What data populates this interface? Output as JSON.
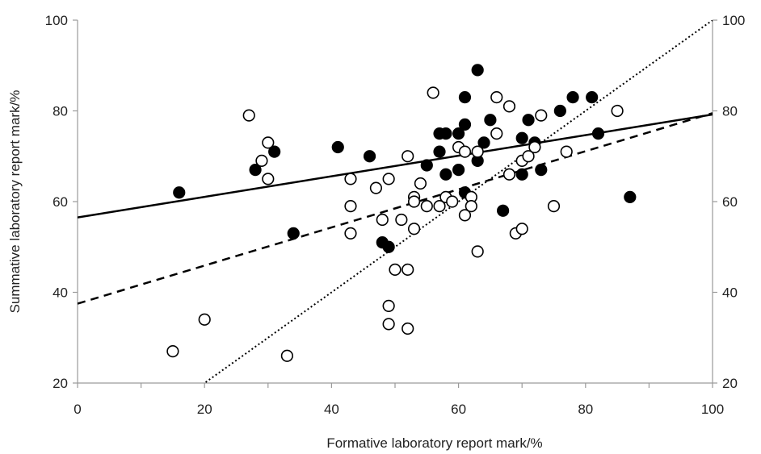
{
  "chart_data": {
    "type": "scatter",
    "title": "",
    "xlabel": "Formative laboratory report mark/%",
    "ylabel": "Summative laboratory report mark/%",
    "xlim": [
      0,
      100
    ],
    "ylim": [
      20,
      100
    ],
    "x_ticks": [
      0,
      20,
      40,
      60,
      80,
      100
    ],
    "y_ticks": [
      20,
      40,
      60,
      80,
      100
    ],
    "x_tick_labels": [
      "0",
      "20",
      "40",
      "60",
      "80",
      "100"
    ],
    "y_tick_labels": [
      "20",
      "40",
      "60",
      "80",
      "100"
    ],
    "right_axis_labels": true,
    "grid": false,
    "legend": "none",
    "series": [
      {
        "marker": "filled-circle",
        "color": "#000000",
        "points": [
          [
            16,
            62
          ],
          [
            28,
            67
          ],
          [
            31,
            71
          ],
          [
            34,
            53
          ],
          [
            41,
            72
          ],
          [
            46,
            70
          ],
          [
            48,
            51
          ],
          [
            49,
            50
          ],
          [
            55,
            68
          ],
          [
            57,
            75
          ],
          [
            57,
            71
          ],
          [
            58,
            75
          ],
          [
            58,
            66
          ],
          [
            60,
            75
          ],
          [
            60,
            67
          ],
          [
            61,
            83
          ],
          [
            61,
            77
          ],
          [
            61,
            62
          ],
          [
            63,
            89
          ],
          [
            63,
            69
          ],
          [
            64,
            73
          ],
          [
            65,
            78
          ],
          [
            67,
            58
          ],
          [
            70,
            74
          ],
          [
            70,
            66
          ],
          [
            71,
            78
          ],
          [
            72,
            73
          ],
          [
            73,
            67
          ],
          [
            76,
            80
          ],
          [
            78,
            83
          ],
          [
            81,
            83
          ],
          [
            82,
            75
          ],
          [
            87,
            61
          ]
        ],
        "trend": {
          "style": "solid",
          "intercept": 56.5,
          "slope": 0.227
        }
      },
      {
        "marker": "open-circle",
        "color": "#000000",
        "points": [
          [
            15,
            27
          ],
          [
            20,
            34
          ],
          [
            27,
            79
          ],
          [
            29,
            69
          ],
          [
            30,
            73
          ],
          [
            30,
            65
          ],
          [
            33,
            26
          ],
          [
            43,
            65
          ],
          [
            43,
            59
          ],
          [
            43,
            53
          ],
          [
            47,
            63
          ],
          [
            48,
            56
          ],
          [
            49,
            65
          ],
          [
            49,
            37
          ],
          [
            49,
            33
          ],
          [
            50,
            45
          ],
          [
            51,
            56
          ],
          [
            52,
            70
          ],
          [
            52,
            45
          ],
          [
            52,
            32
          ],
          [
            53,
            61
          ],
          [
            53,
            60
          ],
          [
            53,
            54
          ],
          [
            54,
            64
          ],
          [
            55,
            59
          ],
          [
            56,
            84
          ],
          [
            57,
            59
          ],
          [
            58,
            61
          ],
          [
            59,
            60
          ],
          [
            60,
            72
          ],
          [
            61,
            71
          ],
          [
            61,
            57
          ],
          [
            62,
            61
          ],
          [
            62,
            59
          ],
          [
            63,
            71
          ],
          [
            63,
            49
          ],
          [
            66,
            83
          ],
          [
            66,
            75
          ],
          [
            68,
            81
          ],
          [
            68,
            66
          ],
          [
            69,
            53
          ],
          [
            70,
            69
          ],
          [
            70,
            54
          ],
          [
            71,
            70
          ],
          [
            72,
            72
          ],
          [
            73,
            79
          ],
          [
            75,
            59
          ],
          [
            77,
            71
          ],
          [
            85,
            80
          ]
        ],
        "trend": {
          "style": "dashed",
          "intercept": 37.5,
          "slope": 0.42
        }
      }
    ],
    "reference_line": {
      "style": "dotted",
      "from": [
        0,
        0
      ],
      "to": [
        100,
        100
      ]
    }
  }
}
